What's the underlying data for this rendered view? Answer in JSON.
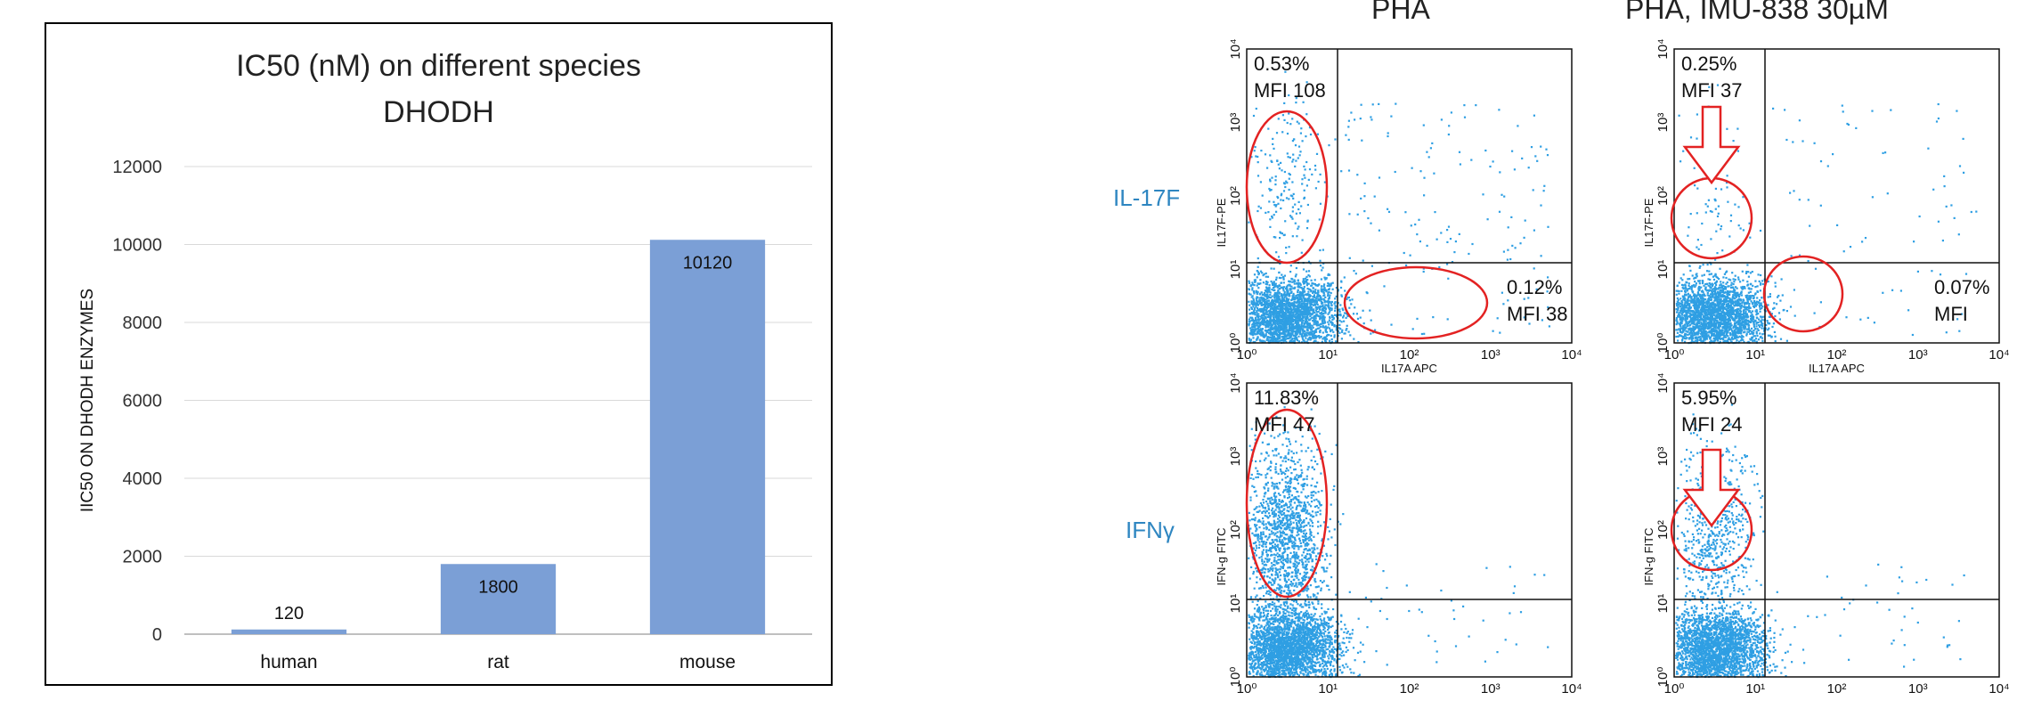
{
  "chart_data": [
    {
      "type": "bar",
      "title_lines": [
        "IC50 (nM) on different species",
        "DHODH"
      ],
      "ylabel": "IIC50 ON DHODH  ENZYMES",
      "categories": [
        "human",
        "rat",
        "mouse"
      ],
      "values": [
        120,
        1800,
        10120
      ],
      "data_labels": [
        "120",
        "1800",
        "10120"
      ],
      "ylim": [
        0,
        12000
      ],
      "yticks": [
        "0",
        "2000",
        "4000",
        "6000",
        "8000",
        "10000",
        "12000"
      ],
      "grid": true,
      "colors": {
        "bar": "#7b9fd6",
        "grid": "#d9d9d9",
        "axis": "#bfbfbf"
      }
    },
    {
      "type": "scatter",
      "columns": [
        "PHA",
        "PHA, IMU-838 30µM"
      ],
      "rows": [
        "IL-17F",
        "IFNγ"
      ],
      "y_axis_labels": [
        "IL17F-PE",
        "IFN-g FITC"
      ],
      "x_axis_label": "IL17A APC",
      "axis_scale": "log",
      "tick_labels": [
        "10⁰",
        "10¹",
        "10²",
        "10³",
        "10⁴"
      ],
      "panels": [
        {
          "row": "IL-17F",
          "column": "PHA",
          "stats": [
            "0.53%",
            "MFI 108",
            "0.12%",
            "MFI 38"
          ]
        },
        {
          "row": "IL-17F",
          "column": "PHA, IMU-838 30µM",
          "stats": [
            "0.25%",
            "MFI 37",
            "0.07%",
            "MFI"
          ]
        },
        {
          "row": "IFNγ",
          "column": "PHA",
          "stats": [
            "11.83%",
            "MFI 47"
          ]
        },
        {
          "row": "IFNγ",
          "column": "PHA, IMU-838 30µM",
          "stats": [
            "5.95%",
            "MFI 24"
          ]
        }
      ],
      "colors": {
        "dots": "#2f9fe3",
        "gate": "#e32222",
        "row_label": "#2e86c1"
      }
    }
  ]
}
